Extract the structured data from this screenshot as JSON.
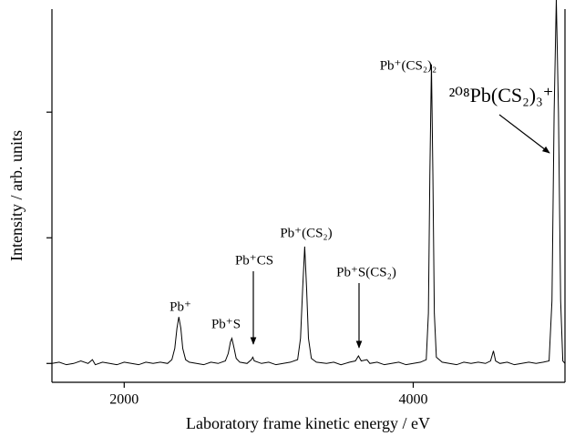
{
  "chart_data": {
    "type": "line",
    "x_label": "Laboratory frame kinetic energy / eV",
    "y_label": "Intensity / arb. units",
    "color": "#000000",
    "xlim": [
      1500,
      5050
    ],
    "xticks": [
      2000,
      4000
    ],
    "ylim": [
      -0.15,
      2.82
    ],
    "yticks": [
      0,
      1,
      2
    ],
    "x": [
      1500,
      1550,
      1600,
      1650,
      1700,
      1750,
      1780,
      1800,
      1850,
      1900,
      1950,
      2000,
      2050,
      2100,
      2150,
      2200,
      2250,
      2300,
      2330,
      2350,
      2365,
      2378,
      2392,
      2405,
      2425,
      2450,
      2500,
      2550,
      2600,
      2650,
      2700,
      2720,
      2735,
      2745,
      2757,
      2775,
      2800,
      2850,
      2880,
      2890,
      2900,
      2950,
      3000,
      3050,
      3100,
      3150,
      3200,
      3220,
      3235,
      3249,
      3262,
      3275,
      3295,
      3330,
      3400,
      3450,
      3500,
      3560,
      3600,
      3621,
      3640,
      3680,
      3700,
      3750,
      3800,
      3850,
      3900,
      3950,
      4000,
      4050,
      4090,
      4105,
      4115,
      4126,
      4136,
      4146,
      4160,
      4200,
      4250,
      4300,
      4350,
      4400,
      4450,
      4500,
      4535,
      4555,
      4570,
      4600,
      4650,
      4700,
      4750,
      4800,
      4850,
      4900,
      4940,
      4960,
      4975,
      4990,
      5005,
      5020,
      5035,
      5050
    ],
    "values": [
      0.0,
      0.01,
      -0.01,
      0.0,
      0.02,
      0.0,
      0.03,
      -0.01,
      0.01,
      0.0,
      -0.01,
      0.01,
      0.0,
      -0.01,
      0.01,
      0.0,
      0.01,
      0.0,
      0.03,
      0.12,
      0.28,
      0.37,
      0.28,
      0.12,
      0.03,
      0.01,
      0.0,
      -0.01,
      0.01,
      0.0,
      0.02,
      0.08,
      0.17,
      0.2,
      0.14,
      0.04,
      0.01,
      0.0,
      0.03,
      0.05,
      0.02,
      0.0,
      0.01,
      -0.01,
      0.0,
      0.01,
      0.03,
      0.2,
      0.6,
      0.93,
      0.6,
      0.2,
      0.04,
      0.01,
      0.0,
      0.01,
      -0.01,
      0.01,
      0.02,
      0.06,
      0.02,
      0.03,
      0.0,
      0.01,
      -0.01,
      0.0,
      0.01,
      -0.01,
      0.0,
      0.01,
      0.03,
      0.4,
      1.5,
      2.38,
      1.5,
      0.4,
      0.05,
      0.01,
      0.0,
      -0.01,
      0.01,
      0.0,
      0.01,
      0.0,
      0.02,
      0.1,
      0.02,
      0.0,
      0.01,
      -0.01,
      0.0,
      0.01,
      0.0,
      0.01,
      0.02,
      0.5,
      2.0,
      2.9,
      2.0,
      0.5,
      0.02,
      0.0
    ],
    "annotations": [
      "Pb⁺",
      "Pb⁺S",
      "Pb⁺CS",
      "Pb⁺(CS₂)",
      "Pb⁺S(CS₂)",
      "Pb⁺(CS₂)₂",
      "²⁰⁸Pb(CS₂)₃⁺"
    ]
  }
}
